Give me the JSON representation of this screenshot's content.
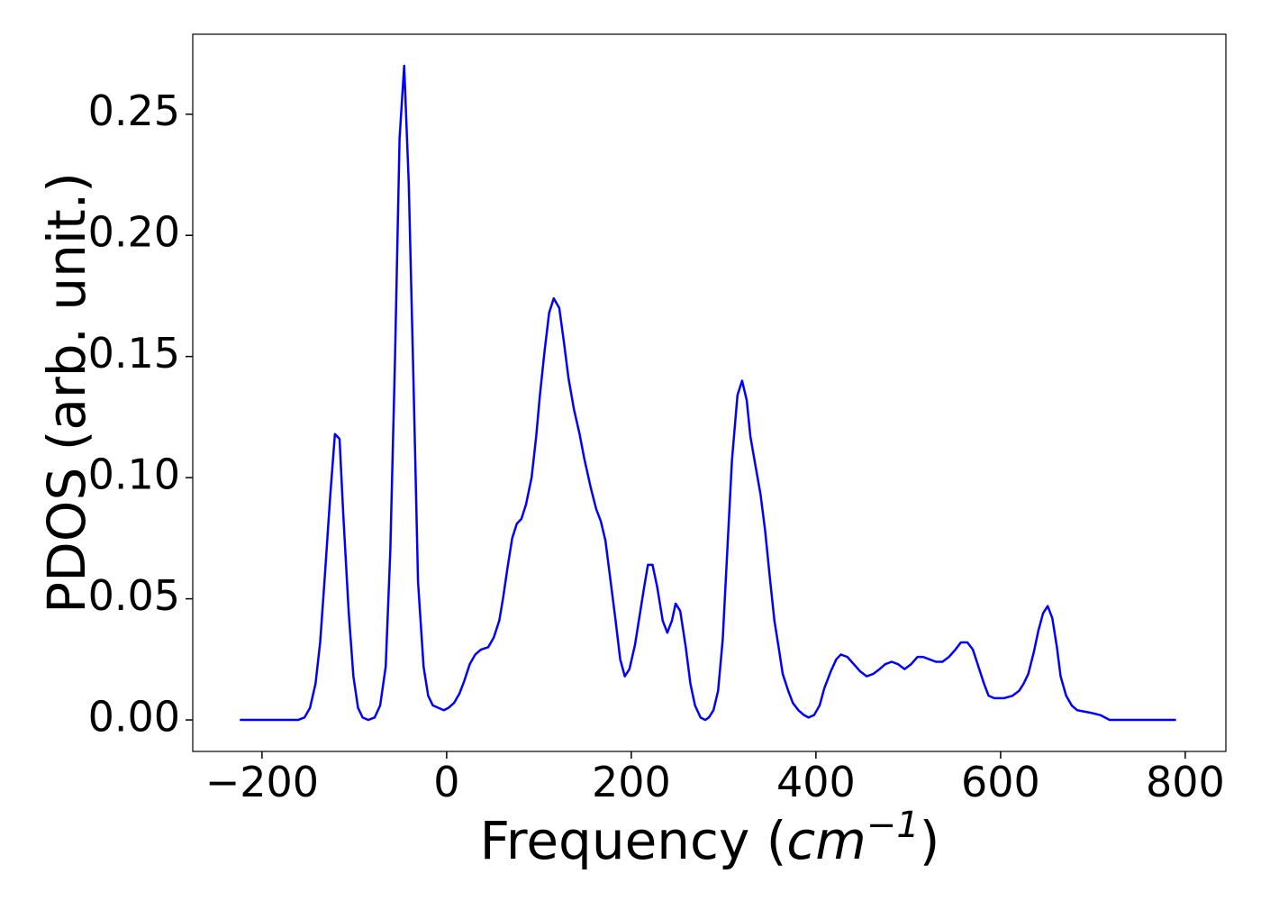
{
  "chart_data": {
    "type": "line",
    "x_label": {
      "text": "Frequency (",
      "unit": "cm",
      "exponent": "−1",
      "close": ")"
    },
    "y_label": "PDOS (arb. unit.)",
    "color": "#0000ff",
    "x": [
      -224,
      -161,
      -154,
      -148,
      -142,
      -137,
      -132,
      -126,
      -121,
      -116,
      -112,
      -106,
      -101,
      -96,
      -91,
      -85,
      -78,
      -72,
      -66,
      -61,
      -56,
      -51,
      -46,
      -41,
      -36,
      -31,
      -25,
      -20,
      -15,
      -9,
      -3,
      2,
      8,
      14,
      19,
      25,
      31,
      37,
      45,
      51,
      57,
      61,
      66,
      71,
      76,
      81,
      86,
      92,
      97,
      101,
      106,
      111,
      116,
      122,
      127,
      132,
      138,
      144,
      149,
      156,
      162,
      167,
      172,
      177,
      183,
      188,
      193,
      198,
      204,
      209,
      214,
      218,
      223,
      228,
      234,
      239,
      244,
      248,
      253,
      259,
      264,
      269,
      275,
      280,
      284,
      289,
      294,
      299,
      304,
      309,
      315,
      320,
      325,
      329,
      334,
      340,
      345,
      350,
      355,
      360,
      364,
      370,
      375,
      381,
      387,
      392,
      398,
      404,
      409,
      416,
      422,
      427,
      434,
      441,
      448,
      455,
      462,
      469,
      475,
      482,
      489,
      496,
      503,
      510,
      516,
      523,
      530,
      537,
      544,
      551,
      557,
      564,
      570,
      576,
      582,
      587,
      593,
      604,
      613,
      620,
      625,
      630,
      636,
      641,
      646,
      651,
      656,
      661,
      665,
      671,
      677,
      683,
      697,
      708,
      718,
      790
    ],
    "values": [
      0,
      0,
      0.001,
      0.005,
      0.015,
      0.032,
      0.059,
      0.093,
      0.118,
      0.116,
      0.085,
      0.044,
      0.018,
      0.005,
      0.001,
      0,
      0.001,
      0.006,
      0.022,
      0.07,
      0.148,
      0.24,
      0.27,
      0.221,
      0.141,
      0.057,
      0.022,
      0.01,
      0.006,
      0.005,
      0.004,
      0.005,
      0.007,
      0.011,
      0.016,
      0.023,
      0.027,
      0.029,
      0.03,
      0.034,
      0.041,
      0.05,
      0.063,
      0.075,
      0.081,
      0.083,
      0.089,
      0.1,
      0.117,
      0.134,
      0.152,
      0.168,
      0.174,
      0.17,
      0.156,
      0.141,
      0.128,
      0.118,
      0.108,
      0.096,
      0.087,
      0.082,
      0.074,
      0.059,
      0.041,
      0.025,
      0.018,
      0.021,
      0.031,
      0.043,
      0.055,
      0.064,
      0.064,
      0.055,
      0.041,
      0.036,
      0.041,
      0.048,
      0.045,
      0.03,
      0.015,
      0.006,
      0.001,
      0,
      0.001,
      0.004,
      0.012,
      0.033,
      0.07,
      0.107,
      0.134,
      0.14,
      0.132,
      0.117,
      0.106,
      0.093,
      0.078,
      0.059,
      0.041,
      0.029,
      0.019,
      0.012,
      0.007,
      0.004,
      0.002,
      0.001,
      0.002,
      0.006,
      0.013,
      0.02,
      0.025,
      0.027,
      0.026,
      0.023,
      0.02,
      0.018,
      0.019,
      0.021,
      0.023,
      0.024,
      0.023,
      0.021,
      0.023,
      0.026,
      0.026,
      0.025,
      0.024,
      0.024,
      0.026,
      0.029,
      0.032,
      0.032,
      0.029,
      0.022,
      0.015,
      0.01,
      0.009,
      0.009,
      0.01,
      0.012,
      0.015,
      0.019,
      0.028,
      0.037,
      0.044,
      0.047,
      0.042,
      0.03,
      0.018,
      0.01,
      0.006,
      0.004,
      0.003,
      0.002,
      0,
      0
    ],
    "xlim": [
      -275,
      844
    ],
    "ylim": [
      -0.013,
      0.283
    ],
    "xticks": [
      {
        "value": -200,
        "label": "−200"
      },
      0,
      200,
      400,
      600,
      800
    ],
    "yticks": [
      {
        "value": 0,
        "label": "0.00"
      },
      {
        "value": 0.05,
        "label": "0.05"
      },
      {
        "value": 0.1,
        "label": "0.10"
      },
      {
        "value": 0.15,
        "label": "0.15"
      },
      {
        "value": 0.2,
        "label": "0.20"
      },
      {
        "value": 0.25,
        "label": "0.25"
      }
    ]
  }
}
